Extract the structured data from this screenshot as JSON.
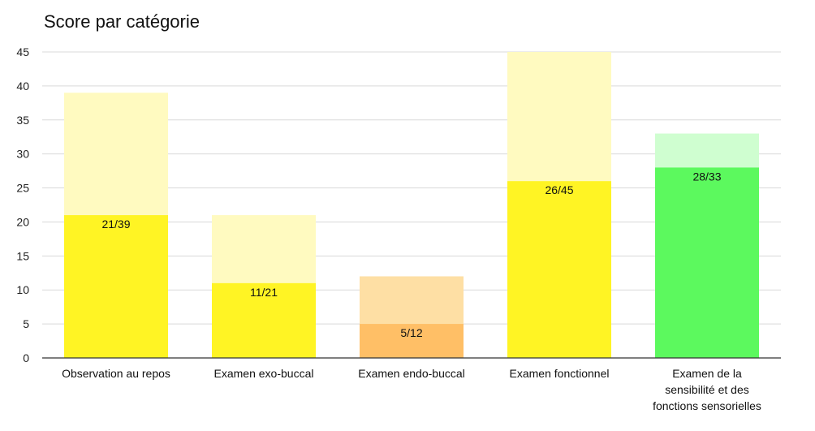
{
  "chart_data": {
    "type": "bar",
    "title": "Score par catégorie",
    "categories": [
      [
        "Observation au repos"
      ],
      [
        "Examen exo-buccal"
      ],
      [
        "Examen endo-buccal"
      ],
      [
        "Examen fonctionnel"
      ],
      [
        "Examen de la",
        "sensibilité et des",
        "fonctions sensorielles"
      ]
    ],
    "series": [
      {
        "values": [
          21,
          11,
          5,
          26,
          28
        ]
      },
      {
        "values": [
          39,
          21,
          12,
          45,
          33
        ]
      }
    ],
    "data_labels": [
      "21/39",
      "11/21",
      "5/12",
      "26/45",
      "28/33"
    ],
    "score_colors": [
      "#fff424",
      "#fff424",
      "#ffbf66",
      "#fff424",
      "#5cf95e"
    ],
    "max_colors": [
      "#fffac0",
      "#fffac0",
      "#fedfa4",
      "#fffac0",
      "#cffed0"
    ],
    "ylim": [
      0,
      45
    ],
    "yticks": [
      0,
      5,
      10,
      15,
      20,
      25,
      30,
      35,
      40,
      45
    ],
    "grid": true,
    "legend": "none"
  }
}
